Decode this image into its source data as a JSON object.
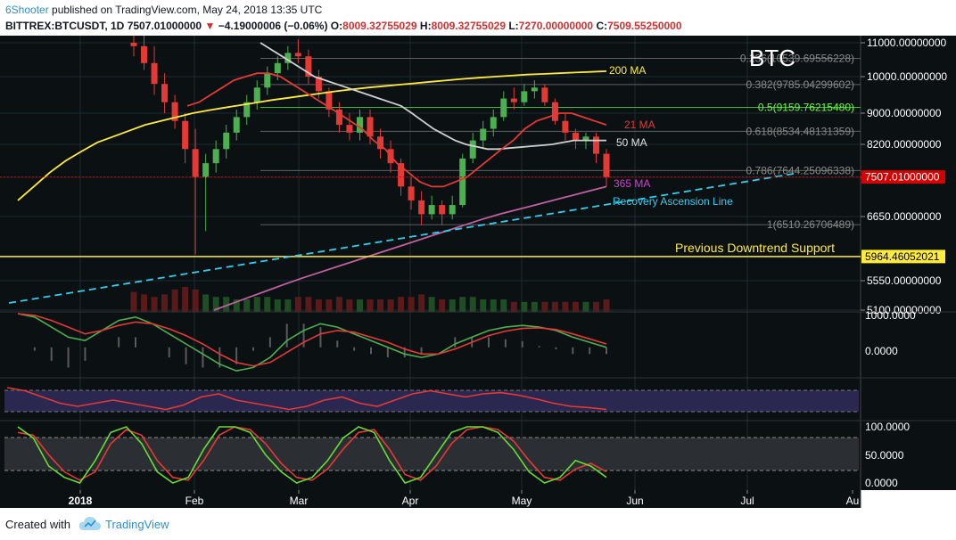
{
  "header": {
    "author": "6Shooter",
    "published": "published on TradingView.com, May 24, 2018 13:35 UTC",
    "symbol": "BITTREX:BTCUSDT, 1D",
    "last": "7507.01000000",
    "change": "−4.19000006 (−0.06%)",
    "open_label": "O:",
    "open": "8009.32755029",
    "high_label": "H:",
    "high": "8009.32755029",
    "low_label": "L:",
    "low": "7270.00000000",
    "close_label": "C:",
    "close": "7509.55250000"
  },
  "footer": {
    "created": "Created with",
    "brand": "TradingView"
  },
  "colors": {
    "bg": "#0b1113",
    "grid": "#1e2a30",
    "up": "#4caf50",
    "down": "#e53935",
    "ma200": "#ffeb3b",
    "ma21": "#e53935",
    "ma50": "#d0d0d0",
    "ma365": "#c060a0",
    "trend": "#33ccee",
    "support": "#ffeb3b",
    "red_tag": "#d50000"
  },
  "chart_data": [
    {
      "type": "candlestick",
      "title": "BTC",
      "x_ticks": [
        "2018",
        "Feb",
        "Mar",
        "Apr",
        "May",
        "Jun",
        "Jul",
        "Au"
      ],
      "y_ticks": [
        "11000.00000000",
        "10000.00000000",
        "9000.00000000",
        "8200.00000000",
        "7500.00000000",
        "6650.00000000",
        "5550.00000000",
        "5100.00000000"
      ],
      "ylim": [
        5100,
        11300
      ],
      "ohlc": [
        [
          1,
          11000,
          11500,
          10600,
          10900
        ],
        [
          2,
          10900,
          11300,
          10200,
          10400
        ],
        [
          3,
          10400,
          10900,
          9500,
          9800
        ],
        [
          4,
          9800,
          10100,
          9000,
          9300
        ],
        [
          5,
          9300,
          9500,
          8600,
          8800
        ],
        [
          6,
          8800,
          9000,
          7800,
          8100
        ],
        [
          7,
          8100,
          8600,
          6000,
          7500
        ],
        [
          8,
          7500,
          8000,
          6400,
          7800
        ],
        [
          9,
          7800,
          8300,
          7600,
          8100
        ],
        [
          10,
          8100,
          8700,
          7900,
          8500
        ],
        [
          11,
          8500,
          9100,
          8300,
          8900
        ],
        [
          12,
          8900,
          9500,
          8700,
          9300
        ],
        [
          13,
          9300,
          9900,
          9100,
          9700
        ],
        [
          14,
          9700,
          10300,
          9500,
          10100
        ],
        [
          15,
          10100,
          10600,
          9900,
          10400
        ],
        [
          16,
          10400,
          10900,
          10200,
          10700
        ],
        [
          17,
          10700,
          11100,
          10400,
          10600
        ],
        [
          18,
          10600,
          10800,
          9800,
          10000
        ],
        [
          19,
          10000,
          10200,
          9400,
          9600
        ],
        [
          20,
          9600,
          9700,
          8900,
          9100
        ],
        [
          21,
          9100,
          9300,
          8500,
          8700
        ],
        [
          22,
          8700,
          9000,
          8300,
          8500
        ],
        [
          23,
          8500,
          9100,
          8300,
          8900
        ],
        [
          24,
          8900,
          9100,
          8200,
          8400
        ],
        [
          25,
          8400,
          8600,
          7900,
          8100
        ],
        [
          26,
          8100,
          8300,
          7600,
          7800
        ],
        [
          27,
          7800,
          7900,
          7100,
          7300
        ],
        [
          28,
          7300,
          7500,
          6800,
          7000
        ],
        [
          29,
          7000,
          7200,
          6500,
          6700
        ],
        [
          30,
          6700,
          7100,
          6600,
          6900
        ],
        [
          31,
          6900,
          7000,
          6500,
          6700
        ],
        [
          32,
          6700,
          7100,
          6600,
          6900
        ],
        [
          33,
          6900,
          8000,
          6850,
          7900
        ],
        [
          34,
          7900,
          8500,
          7800,
          8300
        ],
        [
          35,
          8300,
          8800,
          8100,
          8600
        ],
        [
          36,
          8600,
          9100,
          8400,
          8900
        ],
        [
          37,
          8900,
          9600,
          8800,
          9400
        ],
        [
          38,
          9400,
          9700,
          9100,
          9300
        ],
        [
          39,
          9300,
          9800,
          9200,
          9600
        ],
        [
          40,
          9600,
          9900,
          9400,
          9700
        ],
        [
          41,
          9700,
          9800,
          9200,
          9300
        ],
        [
          42,
          9300,
          9400,
          8700,
          8800
        ],
        [
          43,
          8800,
          9000,
          8300,
          8500
        ],
        [
          44,
          8500,
          8600,
          8100,
          8300
        ],
        [
          45,
          8300,
          8500,
          8100,
          8400
        ],
        [
          46,
          8400,
          8500,
          7800,
          8000
        ],
        [
          47,
          8000,
          8100,
          7300,
          7500
        ]
      ],
      "volume": [
        0.8,
        0.7,
        0.6,
        0.7,
        0.9,
        1.0,
        0.9,
        0.7,
        0.6,
        0.6,
        0.5,
        0.5,
        0.6,
        0.6,
        0.5,
        0.5,
        0.6,
        0.6,
        0.5,
        0.5,
        0.6,
        0.5,
        0.5,
        0.5,
        0.5,
        0.5,
        0.6,
        0.6,
        0.7,
        0.6,
        0.5,
        0.5,
        0.6,
        0.6,
        0.5,
        0.5,
        0.5,
        0.4,
        0.4,
        0.4,
        0.4,
        0.4,
        0.4,
        0.4,
        0.4,
        0.4,
        0.5
      ],
      "ma": [
        {
          "name": "200 MA",
          "values": [
            7000,
            7300,
            7600,
            7850,
            8050,
            8250,
            8400,
            8550,
            8700,
            8800,
            8900,
            9000,
            9080,
            9150,
            9220,
            9290,
            9360,
            9420,
            9480,
            9540,
            9600,
            9650,
            9700,
            9740,
            9780,
            9820,
            9860,
            9900,
            9940,
            9970,
            10000,
            10030,
            10060,
            10080,
            10100,
            10120,
            10140,
            10160
          ]
        },
        {
          "name": "50 MA",
          "values": [
            11000,
            10800,
            10600,
            10400,
            10200,
            10000,
            9900,
            9800,
            9700,
            9600,
            9500,
            9400,
            9300,
            9200,
            9000,
            8800,
            8600,
            8450,
            8300,
            8200,
            8150,
            8100,
            8100,
            8120,
            8140,
            8160,
            8180,
            8200,
            8250,
            8300,
            8300,
            8300,
            8300
          ]
        },
        {
          "name": "21 MA",
          "values": [
            9200,
            9300,
            9500,
            9700,
            9900,
            10000,
            10100,
            10100,
            10000,
            9800,
            9600,
            9400,
            9200,
            9000,
            8800,
            8600,
            8300,
            8100,
            7800,
            7600,
            7400,
            7300,
            7300,
            7400,
            7500,
            7700,
            7900,
            8100,
            8300,
            8600,
            8800,
            8900,
            9000,
            9000,
            8900,
            8800,
            8700
          ]
        },
        {
          "name": "365 MA",
          "values": [
            5100,
            5200,
            5300,
            5400,
            5500,
            5600,
            5700,
            5800,
            5900,
            6000,
            6100,
            6200,
            6300,
            6400,
            6500,
            6600,
            6700,
            6800,
            6900,
            7000,
            7100,
            7200,
            7300
          ]
        }
      ],
      "fibonacci": [
        {
          "level": "0.236",
          "text": "0.236(10539.69556228)",
          "price": 10539.69556228
        },
        {
          "level": "0.382",
          "text": "0.382(9785.04299602)",
          "price": 9785.04299602
        },
        {
          "level": "0.5",
          "text": "0.5(9159.76215480)",
          "price": 9159.7621548
        },
        {
          "level": "0.618",
          "text": "0.618(8534.48131359)",
          "price": 8534.48131359
        },
        {
          "level": "0.786",
          "text": "0.786(7644.25096338)",
          "price": 7644.25096338
        },
        {
          "level": "1",
          "text": "1(6510.26706489)",
          "price": 6510.26706489
        }
      ],
      "annotations": {
        "recovery": "Recovery Ascension Line",
        "support": "Previous Downtrend Support"
      },
      "price_tag": "7507.01000000",
      "support_tag": "5964.46052021",
      "support_price": 5964.46052021
    },
    {
      "type": "line",
      "title": "",
      "y_ticks": [
        "1000.0000",
        "0.0000"
      ],
      "series": [
        {
          "values": [
            1000,
            900,
            600,
            300,
            200,
            500,
            800,
            900,
            700,
            400,
            100,
            -200,
            -500,
            -700,
            -600,
            -300,
            200,
            500,
            700,
            600,
            400,
            200,
            0,
            -200,
            -300,
            -200,
            100,
            300,
            500,
            600,
            650,
            600,
            500,
            300,
            150,
            0
          ]
        },
        {
          "values": [
            1000,
            950,
            800,
            600,
            400,
            500,
            650,
            750,
            700,
            550,
            350,
            100,
            -200,
            -450,
            -550,
            -450,
            -150,
            150,
            400,
            500,
            450,
            300,
            150,
            -50,
            -200,
            -200,
            -50,
            150,
            350,
            480,
            560,
            580,
            530,
            400,
            250,
            100
          ]
        }
      ]
    },
    {
      "type": "line",
      "title": "",
      "series": [
        {
          "values": [
            70,
            65,
            55,
            45,
            40,
            45,
            50,
            45,
            40,
            35,
            42,
            55,
            60,
            50,
            45,
            40,
            35,
            40,
            50,
            55,
            45,
            40,
            50,
            60,
            65,
            60,
            55,
            60,
            62,
            58,
            52,
            45,
            40,
            38,
            35
          ]
        }
      ]
    },
    {
      "type": "line",
      "title": "",
      "y_ticks": [
        "100.0000",
        "50.0000",
        "0.0000"
      ],
      "series": [
        {
          "values": [
            100,
            80,
            30,
            10,
            0,
            40,
            90,
            100,
            70,
            20,
            0,
            10,
            60,
            100,
            100,
            90,
            50,
            20,
            0,
            10,
            40,
            80,
            100,
            90,
            40,
            0,
            10,
            50,
            90,
            100,
            100,
            90,
            60,
            20,
            0,
            10,
            40,
            30,
            10
          ]
        },
        {
          "values": [
            90,
            85,
            50,
            20,
            5,
            20,
            70,
            95,
            85,
            40,
            10,
            5,
            40,
            85,
            100,
            95,
            70,
            35,
            10,
            5,
            25,
            60,
            90,
            95,
            60,
            15,
            5,
            30,
            70,
            95,
            100,
            95,
            75,
            40,
            10,
            5,
            25,
            35,
            20
          ]
        }
      ]
    }
  ]
}
